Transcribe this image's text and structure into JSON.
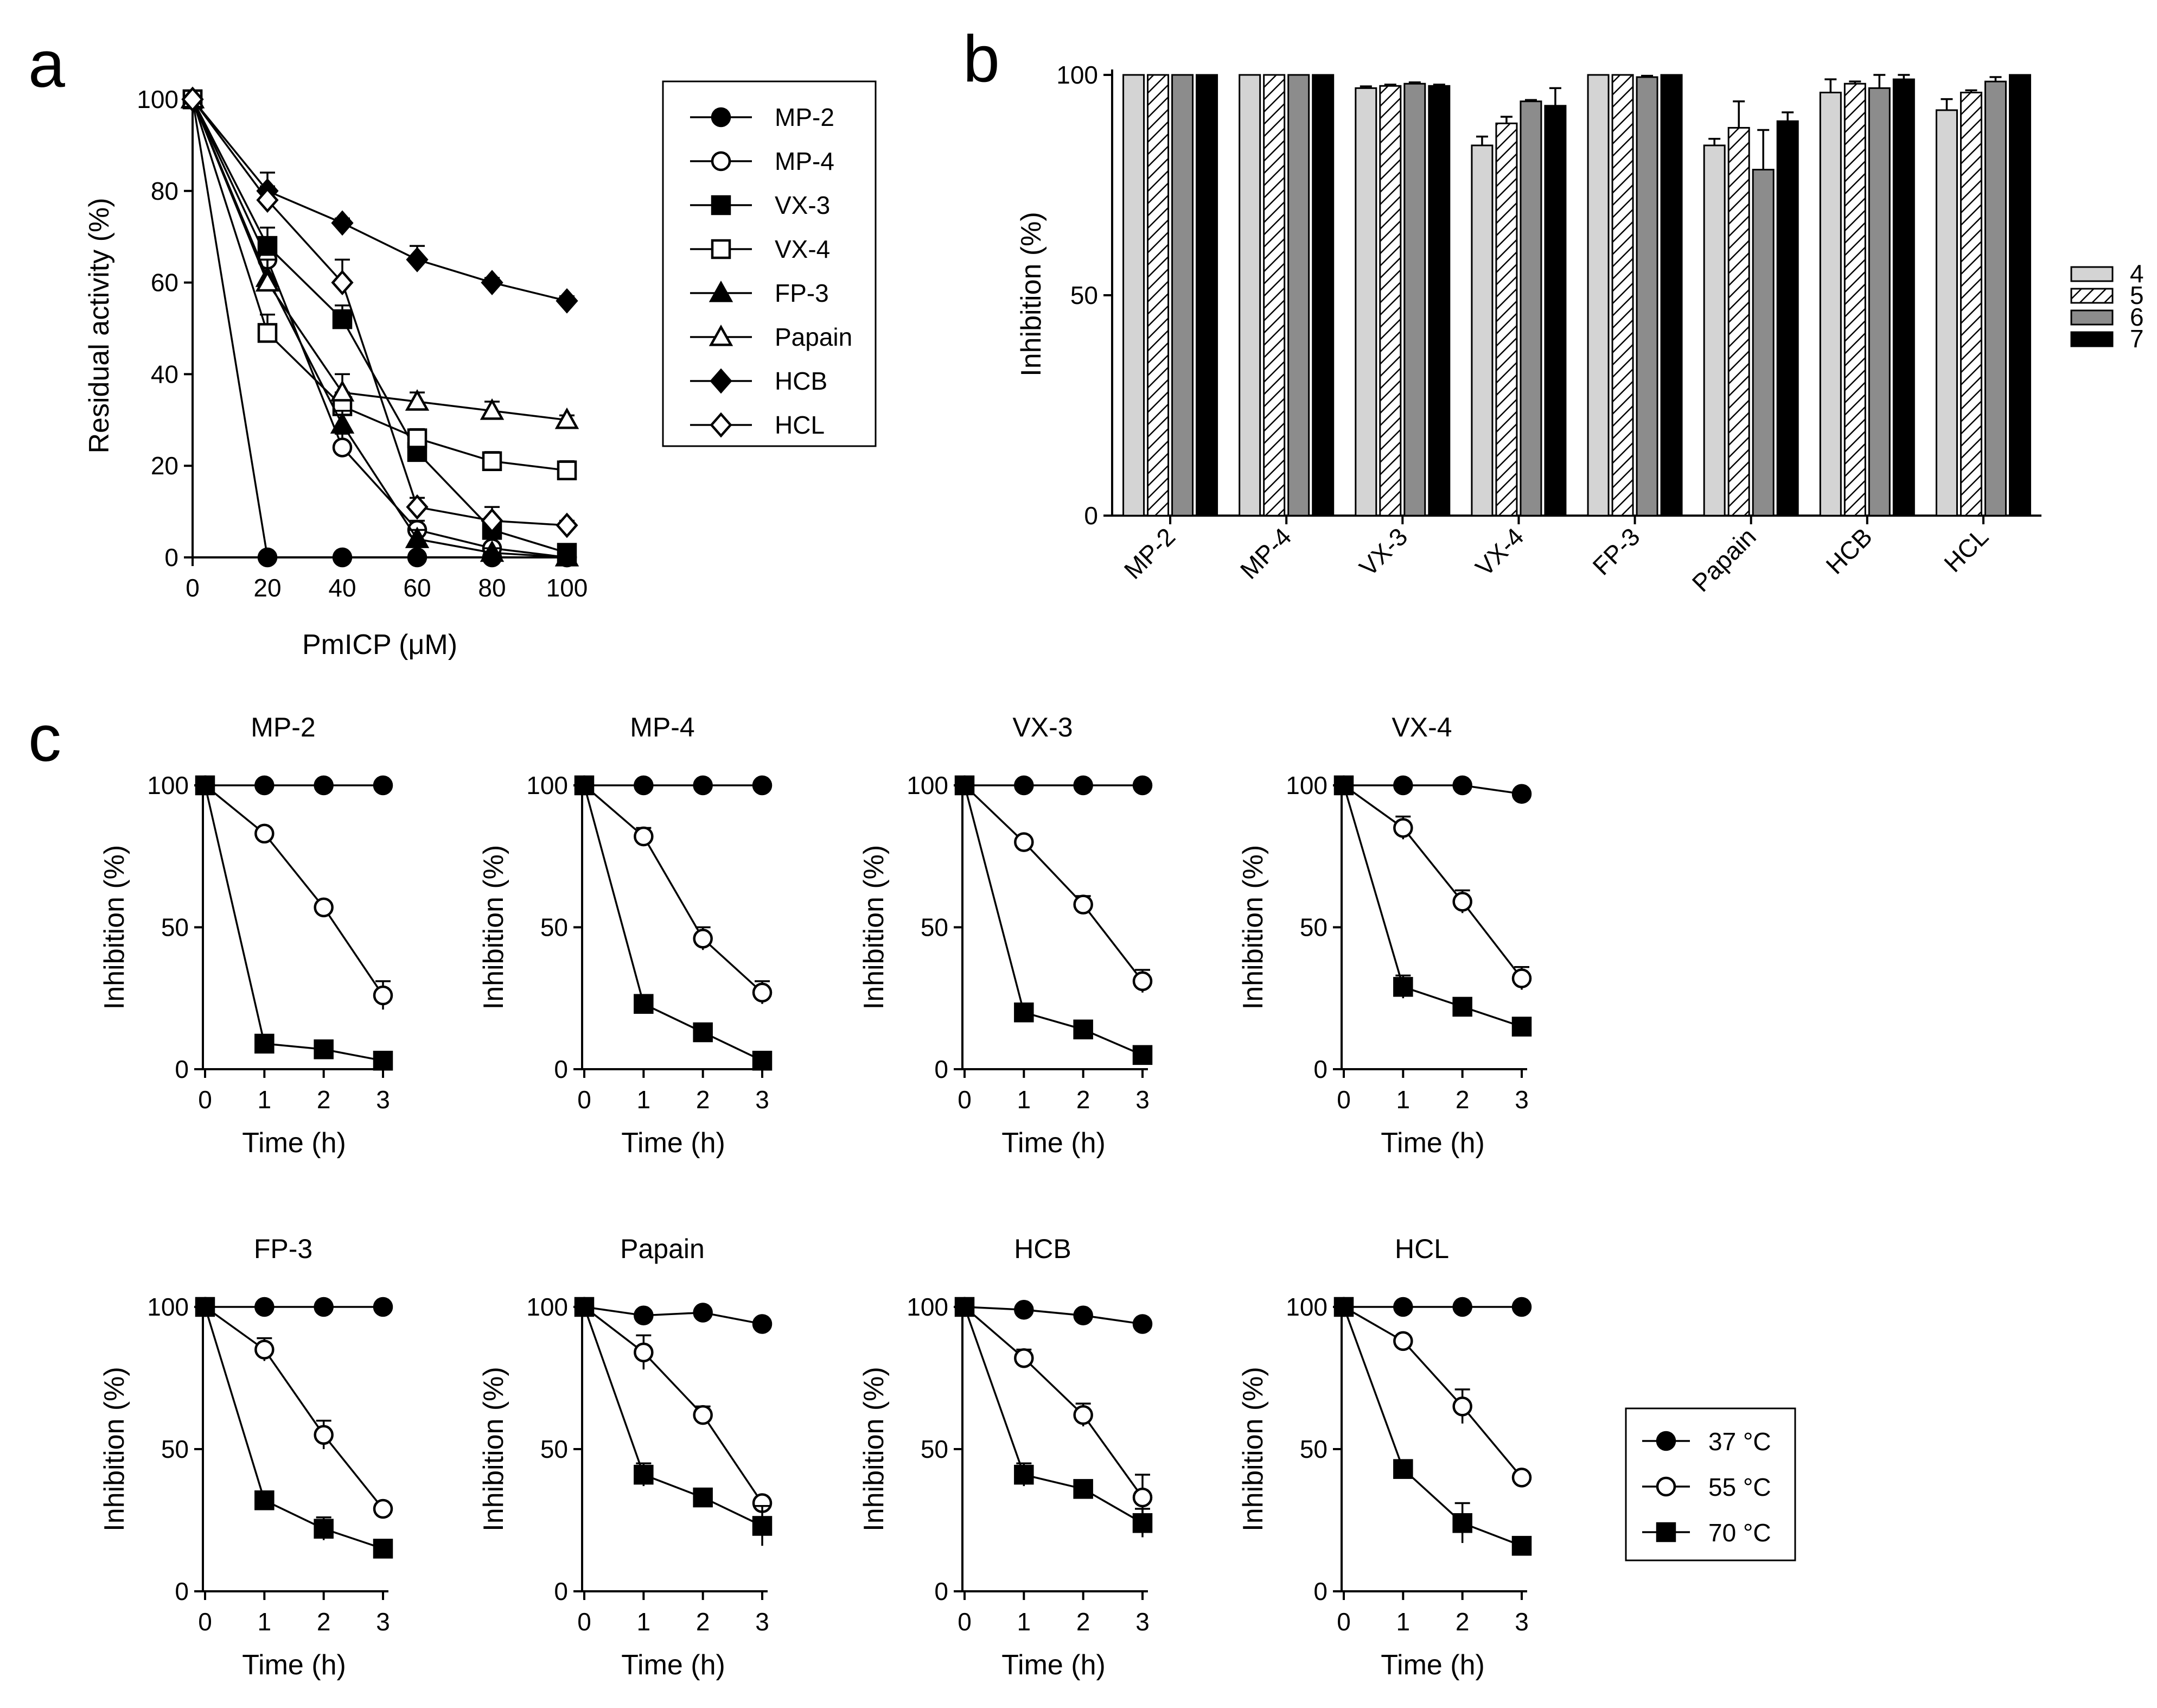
{
  "panels": {
    "a": {
      "letter": "a",
      "chart_data": {
        "type": "line",
        "xlabel": "PmICP (μM)",
        "ylabel": "Residual activity (%)",
        "x": [
          0,
          20,
          40,
          60,
          80,
          100
        ],
        "xlim": [
          0,
          100
        ],
        "ylim": [
          0,
          100
        ],
        "xticks": [
          "0",
          "20",
          "40",
          "60",
          "80",
          "100"
        ],
        "yticks": [
          "0",
          "20",
          "40",
          "60",
          "80",
          "100"
        ],
        "legend_position": "right",
        "series": [
          {
            "name": "MP-2",
            "marker": "circle",
            "filled": true,
            "values": [
              100,
              0,
              0,
              0,
              0,
              0
            ],
            "errors": [
              0,
              0,
              0,
              0,
              0,
              0
            ]
          },
          {
            "name": "MP-4",
            "marker": "circle",
            "filled": false,
            "values": [
              100,
              65,
              24,
              6,
              2,
              0
            ],
            "errors": [
              0,
              3,
              3,
              2,
              1,
              0
            ]
          },
          {
            "name": "VX-3",
            "marker": "square",
            "filled": true,
            "values": [
              100,
              68,
              52,
              23,
              6,
              1
            ],
            "errors": [
              0,
              4,
              3,
              3,
              2,
              0
            ]
          },
          {
            "name": "VX-4",
            "marker": "square",
            "filled": false,
            "values": [
              100,
              49,
              33,
              26,
              21,
              19
            ],
            "errors": [
              0,
              4,
              3,
              2,
              2,
              2
            ]
          },
          {
            "name": "FP-3",
            "marker": "triangle",
            "filled": true,
            "values": [
              100,
              61,
              29,
              4,
              1,
              0
            ],
            "errors": [
              0,
              4,
              3,
              2,
              1,
              0
            ]
          },
          {
            "name": "Papain",
            "marker": "triangle",
            "filled": false,
            "values": [
              100,
              60,
              36,
              34,
              32,
              30
            ],
            "errors": [
              0,
              5,
              4,
              2,
              2,
              1
            ]
          },
          {
            "name": "HCB",
            "marker": "diamond",
            "filled": true,
            "values": [
              100,
              80,
              73,
              65,
              60,
              56
            ],
            "errors": [
              0,
              4,
              1,
              3,
              1,
              1
            ]
          },
          {
            "name": "HCL",
            "marker": "diamond",
            "filled": false,
            "values": [
              100,
              78,
              60,
              11,
              8,
              7
            ],
            "errors": [
              0,
              3,
              5,
              2,
              3,
              1
            ]
          }
        ]
      }
    },
    "b": {
      "letter": "b",
      "chart_data": {
        "type": "bar",
        "ylabel": "Inhibition (%)",
        "xlabel": "",
        "ylim": [
          0,
          100
        ],
        "yticks": [
          "0",
          "50",
          "100"
        ],
        "categories": [
          "MP-2",
          "MP-4",
          "VX-3",
          "VX-4",
          "FP-3",
          "Papain",
          "HCB",
          "HCL"
        ],
        "legend_position": "right",
        "series": [
          {
            "name": "4",
            "fill": "#d4d4d4",
            "pattern": "solid",
            "values": [
              100,
              100,
              97,
              84,
              100,
              84,
              96,
              92
            ],
            "errors": [
              0,
              0,
              0.4,
              2,
              0,
              1.5,
              3,
              2.5
            ]
          },
          {
            "name": "5",
            "fill": "#ffffff",
            "pattern": "hatched",
            "values": [
              100,
              100,
              97.5,
              89,
              100,
              88,
              98,
              96
            ],
            "errors": [
              0,
              0,
              0.3,
              1.5,
              0,
              6,
              0.5,
              0.5
            ]
          },
          {
            "name": "6",
            "fill": "#8c8c8c",
            "pattern": "solid",
            "values": [
              100,
              100,
              98,
              94,
              99.5,
              78.5,
              97,
              98.5
            ],
            "errors": [
              0,
              0,
              0.3,
              0.3,
              0.3,
              9,
              3,
              1
            ]
          },
          {
            "name": "7",
            "fill": "#000000",
            "pattern": "solid",
            "values": [
              100,
              100,
              97.5,
              93,
              100,
              89.5,
              99,
              100
            ],
            "errors": [
              0,
              0,
              0.3,
              4,
              0,
              2,
              1,
              0
            ]
          }
        ]
      }
    },
    "c": {
      "letter": "c",
      "legend": [
        {
          "label": "37 °C",
          "marker": "circle",
          "filled": true
        },
        {
          "label": "55 °C",
          "marker": "circle",
          "filled": false
        },
        {
          "label": "70 °C",
          "marker": "square",
          "filled": true
        }
      ],
      "chart_data": [
        {
          "type": "line",
          "title": "MP-2",
          "xlabel": "Time (h)",
          "ylabel": "Inhibition (%)",
          "x": [
            0,
            1,
            2,
            3
          ],
          "xticks": [
            "0",
            "1",
            "2",
            "3"
          ],
          "yticks": [
            "0",
            "50",
            "100"
          ],
          "ylim": [
            0,
            100
          ],
          "series": [
            {
              "name": "37 °C",
              "values": [
                100,
                100,
                100,
                100
              ],
              "errors": [
                0,
                0,
                0,
                0
              ]
            },
            {
              "name": "55 °C",
              "values": [
                100,
                83,
                57,
                26
              ],
              "errors": [
                0,
                1,
                1,
                5
              ]
            },
            {
              "name": "70 °C",
              "values": [
                100,
                9,
                7,
                3
              ],
              "errors": [
                0,
                1,
                1,
                1
              ]
            }
          ]
        },
        {
          "type": "line",
          "title": "MP-4",
          "xlabel": "Time (h)",
          "ylabel": "Inhibition (%)",
          "x": [
            0,
            1,
            2,
            3
          ],
          "xticks": [
            "0",
            "1",
            "2",
            "3"
          ],
          "yticks": [
            "0",
            "50",
            "100"
          ],
          "ylim": [
            0,
            100
          ],
          "series": [
            {
              "name": "37 °C",
              "values": [
                100,
                100,
                100,
                100
              ],
              "errors": [
                0,
                0,
                0,
                0
              ]
            },
            {
              "name": "55 °C",
              "values": [
                100,
                82,
                46,
                27
              ],
              "errors": [
                0,
                3,
                4,
                4
              ]
            },
            {
              "name": "70 °C",
              "values": [
                100,
                23,
                13,
                3
              ],
              "errors": [
                0,
                1,
                1,
                1
              ]
            }
          ]
        },
        {
          "type": "line",
          "title": "VX-3",
          "xlabel": "Time (h)",
          "ylabel": "Inhibition (%)",
          "x": [
            0,
            1,
            2,
            3
          ],
          "xticks": [
            "0",
            "1",
            "2",
            "3"
          ],
          "yticks": [
            "0",
            "50",
            "100"
          ],
          "ylim": [
            0,
            100
          ],
          "series": [
            {
              "name": "37 °C",
              "values": [
                100,
                100,
                100,
                100
              ],
              "errors": [
                0,
                0,
                0,
                0
              ]
            },
            {
              "name": "55 °C",
              "values": [
                100,
                80,
                58,
                31
              ],
              "errors": [
                0,
                1,
                3,
                4
              ]
            },
            {
              "name": "70 °C",
              "values": [
                100,
                20,
                14,
                5
              ],
              "errors": [
                0,
                2,
                3,
                2
              ]
            }
          ]
        },
        {
          "type": "line",
          "title": "VX-4",
          "xlabel": "Time (h)",
          "ylabel": "Inhibition (%)",
          "x": [
            0,
            1,
            2,
            3
          ],
          "xticks": [
            "0",
            "1",
            "2",
            "3"
          ],
          "yticks": [
            "0",
            "50",
            "100"
          ],
          "ylim": [
            0,
            100
          ],
          "series": [
            {
              "name": "37 °C",
              "values": [
                100,
                100,
                100,
                97
              ],
              "errors": [
                0,
                0,
                0,
                0
              ]
            },
            {
              "name": "55 °C",
              "values": [
                100,
                85,
                59,
                32
              ],
              "errors": [
                0,
                4,
                4,
                4
              ]
            },
            {
              "name": "70 °C",
              "values": [
                100,
                29,
                22,
                15
              ],
              "errors": [
                0,
                4,
                2,
                1
              ]
            }
          ]
        },
        {
          "type": "line",
          "title": "FP-3",
          "xlabel": "Time (h)",
          "ylabel": "Inhibition (%)",
          "x": [
            0,
            1,
            2,
            3
          ],
          "xticks": [
            "0",
            "1",
            "2",
            "3"
          ],
          "yticks": [
            "0",
            "50",
            "100"
          ],
          "ylim": [
            0,
            100
          ],
          "series": [
            {
              "name": "37 °C",
              "values": [
                100,
                100,
                100,
                100
              ],
              "errors": [
                0,
                0,
                0,
                0
              ]
            },
            {
              "name": "55 °C",
              "values": [
                100,
                85,
                55,
                29
              ],
              "errors": [
                0,
                4,
                5,
                1
              ]
            },
            {
              "name": "70 °C",
              "values": [
                100,
                32,
                22,
                15
              ],
              "errors": [
                0,
                1,
                4,
                1
              ]
            }
          ]
        },
        {
          "type": "line",
          "title": "Papain",
          "xlabel": "Time (h)",
          "ylabel": "Inhibition (%)",
          "x": [
            0,
            1,
            2,
            3
          ],
          "xticks": [
            "0",
            "1",
            "2",
            "3"
          ],
          "yticks": [
            "0",
            "50",
            "100"
          ],
          "ylim": [
            0,
            100
          ],
          "series": [
            {
              "name": "37 °C",
              "values": [
                100,
                97,
                98,
                94
              ],
              "errors": [
                0,
                0,
                0,
                0
              ]
            },
            {
              "name": "55 °C",
              "values": [
                100,
                84,
                62,
                31
              ],
              "errors": [
                0,
                6,
                3,
                2
              ]
            },
            {
              "name": "70 °C",
              "values": [
                100,
                41,
                33,
                23
              ],
              "errors": [
                0,
                4,
                1,
                7
              ]
            }
          ]
        },
        {
          "type": "line",
          "title": "HCB",
          "xlabel": "Time (h)",
          "ylabel": "Inhibition (%)",
          "x": [
            0,
            1,
            2,
            3
          ],
          "xticks": [
            "0",
            "1",
            "2",
            "3"
          ],
          "yticks": [
            "0",
            "50",
            "100"
          ],
          "ylim": [
            0,
            100
          ],
          "series": [
            {
              "name": "37 °C",
              "values": [
                100,
                99,
                97,
                94
              ],
              "errors": [
                0,
                0,
                0,
                0
              ]
            },
            {
              "name": "55 °C",
              "values": [
                100,
                82,
                62,
                33
              ],
              "errors": [
                0,
                3,
                4,
                8
              ]
            },
            {
              "name": "70 °C",
              "values": [
                100,
                41,
                36,
                24
              ],
              "errors": [
                0,
                4,
                1,
                5
              ]
            }
          ]
        },
        {
          "type": "line",
          "title": "HCL",
          "xlabel": "Time (h)",
          "ylabel": "Inhibition (%)",
          "x": [
            0,
            1,
            2,
            3
          ],
          "xticks": [
            "0",
            "1",
            "2",
            "3"
          ],
          "yticks": [
            "0",
            "50",
            "100"
          ],
          "ylim": [
            0,
            100
          ],
          "series": [
            {
              "name": "37 °C",
              "values": [
                100,
                100,
                100,
                100
              ],
              "errors": [
                0,
                0,
                0,
                0
              ]
            },
            {
              "name": "55 °C",
              "values": [
                100,
                88,
                65,
                40
              ],
              "errors": [
                0,
                1,
                6,
                1
              ]
            },
            {
              "name": "70 °C",
              "values": [
                100,
                43,
                24,
                16
              ],
              "errors": [
                0,
                1,
                7,
                1
              ]
            }
          ]
        }
      ]
    }
  }
}
